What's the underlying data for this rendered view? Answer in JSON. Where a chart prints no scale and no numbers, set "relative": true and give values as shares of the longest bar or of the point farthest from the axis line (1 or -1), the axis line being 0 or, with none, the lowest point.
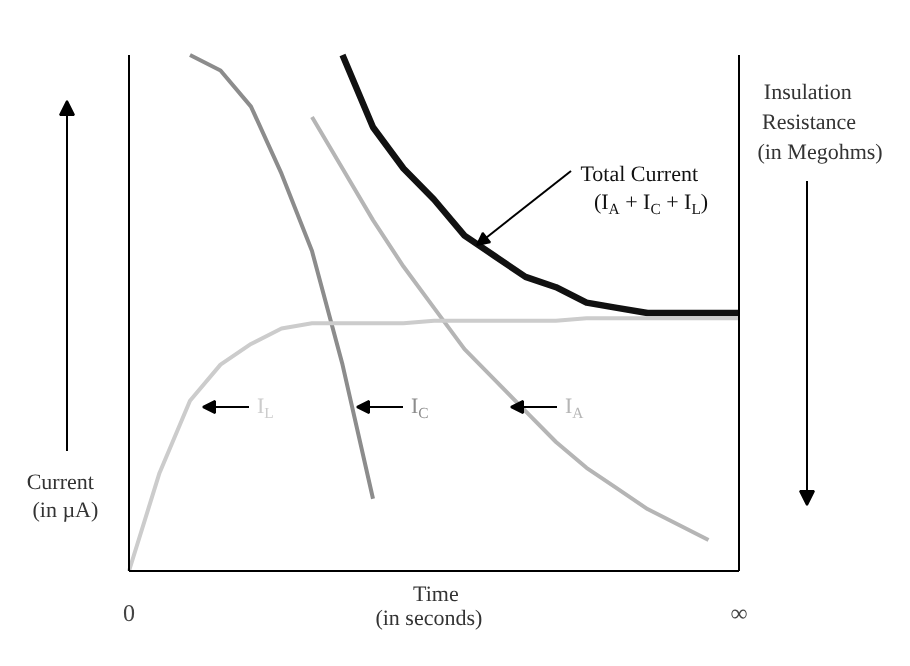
{
  "chart_data": {
    "type": "line",
    "relative": true,
    "xlabel": "Time\n(in seconds)",
    "ylabel": "Current\n(in µA)",
    "y2label": "Insulation\nResistance\n(in Megohms)",
    "categories": [
      "0",
      null,
      null,
      null,
      null,
      null,
      null,
      null,
      null,
      null,
      null,
      null,
      null,
      null,
      null,
      null,
      null,
      null,
      null,
      null,
      "∞"
    ],
    "series": [
      {
        "name": "Total Current\n(I$_{A}$ + I$_{C}$ + I$_{L}$)",
        "color": "#111111",
        "values": [
          null,
          null,
          null,
          null,
          null,
          null,
          null,
          1.0,
          0.86,
          0.78,
          0.72,
          0.65,
          0.61,
          0.57,
          0.55,
          0.52,
          0.51,
          0.5,
          0.5,
          0.5,
          0.5
        ]
      },
      {
        "name": "I$_{A}$",
        "color": "#b5b5b5",
        "values": [
          null,
          null,
          null,
          null,
          null,
          null,
          0.88,
          0.78,
          0.68,
          0.59,
          0.51,
          0.43,
          0.37,
          0.31,
          0.25,
          0.2,
          0.16,
          0.12,
          0.09,
          0.06,
          null
        ]
      },
      {
        "name": "I$_{C}$",
        "color": "#8c8c8c",
        "values": [
          null,
          null,
          1.0,
          0.97,
          0.9,
          0.77,
          0.62,
          0.4,
          0.14,
          null,
          null,
          null,
          null,
          null,
          null,
          null,
          null,
          null,
          null,
          null,
          null
        ]
      },
      {
        "name": "I$_{L}$",
        "color": "#cccccc",
        "values": [
          0,
          0.19,
          0.33,
          0.4,
          0.44,
          0.47,
          0.48,
          0.48,
          0.48,
          0.48,
          0.485,
          0.485,
          0.485,
          0.485,
          0.485,
          0.49,
          0.49,
          0.49,
          0.49,
          0.49,
          0.49
        ]
      }
    ]
  }
}
